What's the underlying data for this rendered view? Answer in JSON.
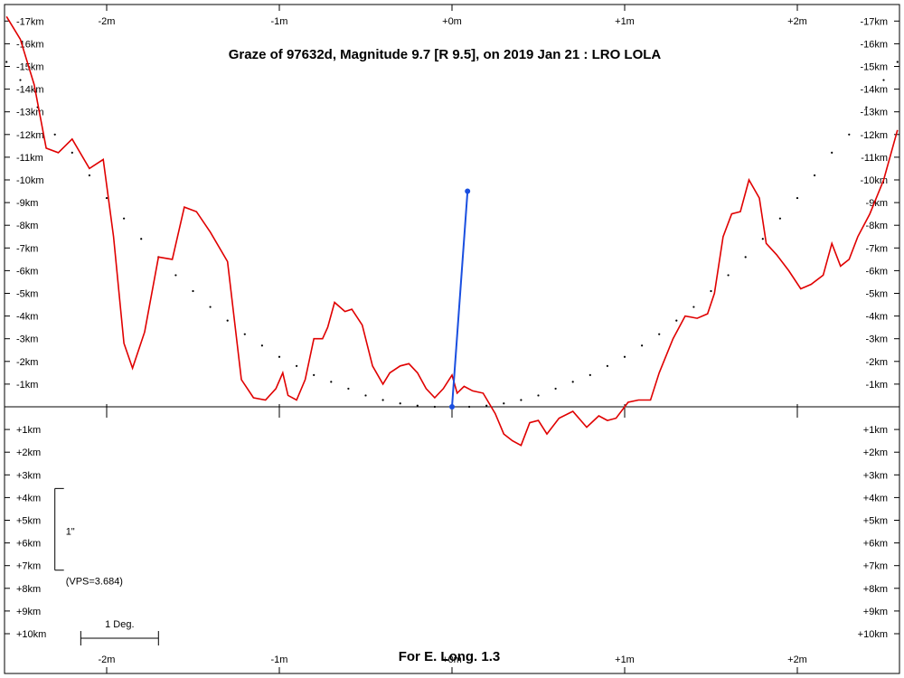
{
  "chart_data": {
    "type": "line",
    "title": "Graze of  97632d,  Magnitude 9.7 [R 9.5],  on 2019 Jan 21  :  LRO LOLA",
    "footer": "For E. Long. 1.3",
    "x_unit": "m",
    "y_unit": "km",
    "xlim": [
      -2.6,
      2.6
    ],
    "ylim": [
      -17.3,
      11.8
    ],
    "y_direction": "negative values above the reference line",
    "x_ticks": [
      "-2m",
      "-1m",
      "+0m",
      "+1m",
      "+2m"
    ],
    "x_tick_values": [
      -2,
      -1,
      0,
      1,
      2
    ],
    "y_ticks_upper": [
      "-17km",
      "-16km",
      "-15km",
      "-14km",
      "-13km",
      "-12km",
      "-11km",
      "-10km",
      "-9km",
      "-8km",
      "-7km",
      "-6km",
      "-5km",
      "-4km",
      "-3km",
      "-2km",
      "-1km"
    ],
    "y_tick_upper_values": [
      -17,
      -16,
      -15,
      -14,
      -13,
      -12,
      -11,
      -10,
      -9,
      -8,
      -7,
      -6,
      -5,
      -4,
      -3,
      -2,
      -1
    ],
    "y_ticks_lower": [
      "+1km",
      "+2km",
      "+3km",
      "+4km",
      "+5km",
      "+6km",
      "+7km",
      "+8km",
      "+9km",
      "+10km"
    ],
    "y_tick_lower_values": [
      1,
      2,
      3,
      4,
      5,
      6,
      7,
      8,
      9,
      10
    ],
    "grid": false,
    "colors": {
      "profile": "#e00000",
      "star_path": "#1a4fe0",
      "limb": "#000000"
    },
    "series": [
      {
        "role": "lunar limb profile",
        "x": [
          -2.58,
          -2.5,
          -2.42,
          -2.35,
          -2.28,
          -2.2,
          -2.1,
          -2.02,
          -1.96,
          -1.9,
          -1.85,
          -1.78,
          -1.7,
          -1.62,
          -1.55,
          -1.48,
          -1.4,
          -1.3,
          -1.22,
          -1.15,
          -1.08,
          -1.02,
          -0.98,
          -0.95,
          -0.9,
          -0.85,
          -0.8,
          -0.75,
          -0.72,
          -0.68,
          -0.62,
          -0.58,
          -0.52,
          -0.46,
          -0.4,
          -0.36,
          -0.3,
          -0.25,
          -0.2,
          -0.15,
          -0.1,
          -0.05,
          0,
          0.03,
          0.07,
          0.12,
          0.18,
          0.25,
          0.3,
          0.35,
          0.4,
          0.45,
          0.5,
          0.55,
          0.62,
          0.7,
          0.78,
          0.85,
          0.9,
          0.95,
          1.02,
          1.08,
          1.15,
          1.2,
          1.28,
          1.35,
          1.42,
          1.48,
          1.52,
          1.57,
          1.62,
          1.67,
          1.72,
          1.78,
          1.82,
          1.88,
          1.95,
          2.02,
          2.08,
          2.15,
          2.2,
          2.25,
          2.3,
          2.35,
          2.42,
          2.5,
          2.58
        ],
        "y": [
          -17.2,
          -16.2,
          -14.2,
          -11.4,
          -11.2,
          -11.8,
          -10.5,
          -10.9,
          -7.5,
          -2.8,
          -1.7,
          -3.3,
          -6.6,
          -6.5,
          -8.8,
          -8.6,
          -7.7,
          -6.4,
          -1.2,
          -0.4,
          -0.3,
          -0.8,
          -1.5,
          -0.5,
          -0.3,
          -1.2,
          -3.0,
          -3.0,
          -3.5,
          -4.6,
          -4.2,
          -4.3,
          -3.6,
          -1.8,
          -1.0,
          -1.5,
          -1.8,
          -1.9,
          -1.5,
          -0.8,
          -0.4,
          -0.8,
          -1.4,
          -0.6,
          -0.9,
          -0.7,
          -0.6,
          0.3,
          1.2,
          1.5,
          1.7,
          0.7,
          0.6,
          1.2,
          0.5,
          0.2,
          0.9,
          0.4,
          0.6,
          0.5,
          -0.2,
          -0.3,
          -0.3,
          -1.5,
          -3.0,
          -4.0,
          -3.9,
          -4.1,
          -5.0,
          -7.5,
          -8.5,
          -8.6,
          -10.0,
          -9.2,
          -7.2,
          -6.7,
          -6.0,
          -5.2,
          -5.4,
          -5.8,
          -7.2,
          -6.2,
          -6.5,
          -7.5,
          -8.5,
          -10.0,
          -12.2
        ]
      },
      {
        "role": "predicted limb (dotted)",
        "style": "dotted",
        "x": [
          -2.58,
          -2.5,
          -2.4,
          -2.3,
          -2.2,
          -2.1,
          -2.0,
          -1.9,
          -1.8,
          -1.7,
          -1.6,
          -1.5,
          -1.4,
          -1.3,
          -1.2,
          -1.1,
          -1.0,
          -0.9,
          -0.8,
          -0.7,
          -0.6,
          -0.5,
          -0.4,
          -0.3,
          -0.2,
          -0.1,
          0,
          0.1,
          0.2,
          0.3,
          0.4,
          0.5,
          0.6,
          0.7,
          0.8,
          0.9,
          1.0,
          1.1,
          1.2,
          1.3,
          1.4,
          1.5,
          1.6,
          1.7,
          1.8,
          1.9,
          2.0,
          2.1,
          2.2,
          2.3,
          2.4,
          2.5,
          2.58
        ],
        "y": [
          -15.2,
          -14.4,
          -13.2,
          -12.0,
          -11.2,
          -10.2,
          -9.2,
          -8.3,
          -7.4,
          -6.6,
          -5.8,
          -5.1,
          -4.4,
          -3.8,
          -3.2,
          -2.7,
          -2.2,
          -1.8,
          -1.4,
          -1.1,
          -0.8,
          -0.5,
          -0.3,
          -0.15,
          -0.05,
          0,
          0,
          0,
          -0.05,
          -0.15,
          -0.3,
          -0.5,
          -0.8,
          -1.1,
          -1.4,
          -1.8,
          -2.2,
          -2.7,
          -3.2,
          -3.8,
          -4.4,
          -5.1,
          -5.8,
          -6.6,
          -7.4,
          -8.3,
          -9.2,
          -10.2,
          -11.2,
          -12.0,
          -13.2,
          -14.4,
          -15.2
        ]
      }
    ],
    "star_path": {
      "x": [
        0,
        0.09
      ],
      "y": [
        0,
        -9.5
      ]
    },
    "scale_bar_vertical": {
      "label": "1\"",
      "note": "(VPS=3.684)",
      "y_from": 3.6,
      "y_to": 7.2,
      "x": -2.3
    },
    "scale_bar_horizontal": {
      "label": "1 Deg.",
      "x_from": -2.15,
      "x_to": -1.7,
      "y": 10.2
    }
  }
}
